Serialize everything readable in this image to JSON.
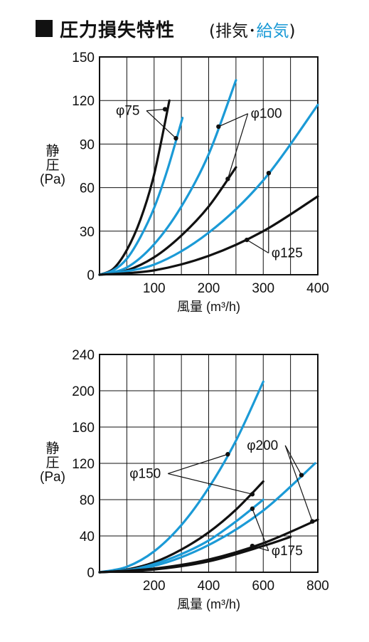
{
  "header": {
    "title": "圧力損失特性",
    "subtitle_open": "(排気･",
    "subtitle_blue": "給気",
    "subtitle_close": ")"
  },
  "colors": {
    "black_curve": "#111111",
    "blue_curve": "#1b9ad6"
  },
  "chart_data": [
    {
      "type": "line",
      "xlabel": "風量 (m³/h)",
      "ylabel": "静\n圧\n(Pa)",
      "xlim": [
        0,
        400
      ],
      "ylim": [
        0,
        150
      ],
      "xticks": [
        100,
        200,
        300,
        400
      ],
      "yticks": [
        0,
        30,
        60,
        90,
        120,
        150
      ],
      "grid": true,
      "series": [
        {
          "color": "black",
          "points": [
            [
              0,
              0
            ],
            [
              25,
              4
            ],
            [
              50,
              17
            ],
            [
              75,
              38
            ],
            [
              100,
              69
            ],
            [
              128,
              120
            ]
          ]
        },
        {
          "color": "blue",
          "points": [
            [
              0,
              0
            ],
            [
              25,
              3
            ],
            [
              50,
              11
            ],
            [
              75,
              26
            ],
            [
              100,
              46
            ],
            [
              125,
              73
            ],
            [
              152,
              108
            ]
          ]
        },
        {
          "color": "blue",
          "points": [
            [
              0,
              0
            ],
            [
              50,
              5
            ],
            [
              100,
              21
            ],
            [
              150,
              47
            ],
            [
              200,
              83
            ],
            [
              250,
              134
            ]
          ]
        },
        {
          "color": "black",
          "points": [
            [
              0,
              0
            ],
            [
              50,
              3
            ],
            [
              100,
              12
            ],
            [
              150,
              27
            ],
            [
              200,
              47
            ],
            [
              250,
              74
            ]
          ]
        },
        {
          "color": "blue",
          "points": [
            [
              0,
              0
            ],
            [
              100,
              7
            ],
            [
              200,
              29
            ],
            [
              300,
              65
            ],
            [
              400,
              117
            ]
          ]
        },
        {
          "color": "black",
          "points": [
            [
              0,
              0
            ],
            [
              100,
              3
            ],
            [
              200,
              13
            ],
            [
              300,
              30
            ],
            [
              400,
              54
            ]
          ]
        }
      ],
      "annotations": [
        {
          "text": "φ75",
          "x": 30,
          "y": 110,
          "targets": [
            [
              120,
              114
            ],
            [
              140,
              94
            ]
          ]
        },
        {
          "text": "φ100",
          "x": 277,
          "y": 108,
          "targets": [
            [
              218,
              102
            ],
            [
              235,
              66
            ]
          ]
        },
        {
          "text": "φ125",
          "x": 315,
          "y": 12,
          "targets": [
            [
              310,
              70
            ],
            [
              270,
              24
            ]
          ]
        }
      ]
    },
    {
      "type": "line",
      "xlabel": "風量 (m³/h)",
      "ylabel": "静\n圧\n(Pa)",
      "xlim": [
        0,
        800
      ],
      "ylim": [
        0,
        240
      ],
      "xticks": [
        200,
        400,
        600,
        800
      ],
      "yticks": [
        0,
        40,
        80,
        120,
        160,
        200,
        240
      ],
      "grid": true,
      "series": [
        {
          "color": "blue",
          "points": [
            [
              0,
              0
            ],
            [
              100,
              6
            ],
            [
              200,
              23
            ],
            [
              300,
              52
            ],
            [
              400,
              93
            ],
            [
              500,
              145
            ],
            [
              600,
              210
            ]
          ]
        },
        {
          "color": "black",
          "points": [
            [
              0,
              0
            ],
            [
              100,
              3
            ],
            [
              200,
              11
            ],
            [
              300,
              25
            ],
            [
              400,
              44
            ],
            [
              500,
              69
            ],
            [
              600,
              100
            ]
          ]
        },
        {
          "color": "blue",
          "points": [
            [
              0,
              0
            ],
            [
              100,
              2
            ],
            [
              200,
              9
            ],
            [
              300,
              20
            ],
            [
              400,
              35
            ],
            [
              500,
              56
            ],
            [
              600,
              80
            ]
          ]
        },
        {
          "color": "blue",
          "points": [
            [
              0,
              0
            ],
            [
              200,
              7
            ],
            [
              400,
              30
            ],
            [
              600,
              68
            ],
            [
              790,
              120
            ]
          ]
        },
        {
          "color": "black",
          "points": [
            [
              0,
              0
            ],
            [
              200,
              4
            ],
            [
              400,
              14
            ],
            [
              600,
              32
            ],
            [
              800,
              58
            ]
          ]
        },
        {
          "color": "black",
          "points": [
            [
              0,
              0
            ],
            [
              200,
              3
            ],
            [
              400,
              12
            ],
            [
              600,
              29
            ],
            [
              700,
              39
            ]
          ]
        }
      ],
      "annotations": [
        {
          "text": "φ150",
          "x": 110,
          "y": 104,
          "targets": [
            [
              470,
              130
            ],
            [
              560,
              86
            ]
          ]
        },
        {
          "text": "φ200",
          "x": 540,
          "y": 135,
          "targets": [
            [
              740,
              107
            ],
            [
              780,
              56
            ]
          ]
        },
        {
          "text": "φ175",
          "x": 630,
          "y": 19,
          "targets": [
            [
              560,
              70
            ],
            [
              560,
              29
            ]
          ]
        }
      ]
    }
  ]
}
